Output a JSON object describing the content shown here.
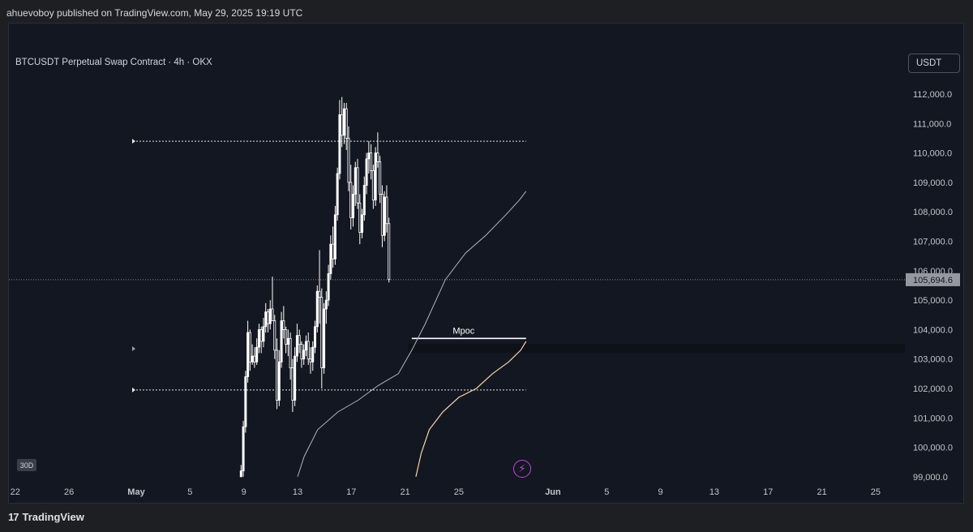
{
  "header": {
    "published_text": "ahuevoboy published on TradingView.com, May 29, 2025 19:19 UTC"
  },
  "symbol": {
    "title": "BTCUSDT Perpetual Swap Contract · 4h · OKX",
    "currency_label": "USDT"
  },
  "toolbar": {
    "period_badge": "30D",
    "bolt_icon": "lightning-icon"
  },
  "footer": {
    "brand": "TradingView",
    "logo_glyph": "17"
  },
  "colors": {
    "background": "#131722",
    "candle": "#ffffff",
    "ma_fast": "#b2b5be",
    "ma_slow": "#f7d5a8",
    "last_price_bg": "#9598a1"
  },
  "chart_data": {
    "type": "candlestick",
    "timeframe": "4h",
    "ylim": [
      99000,
      112500
    ],
    "y_ticks": [
      "112,000.0",
      "111,000.0",
      "110,000.0",
      "109,000.0",
      "108,000.0",
      "107,000.0",
      "106,000.0",
      "105,000.0",
      "104,000.0",
      "103,000.0",
      "102,000.0",
      "101,000.0",
      "100,000.0",
      "99,000.0"
    ],
    "y_tick_values": [
      112000,
      111000,
      110000,
      109000,
      108000,
      107000,
      106000,
      105000,
      104000,
      103000,
      102000,
      101000,
      100000,
      99000
    ],
    "x_tick_labels": [
      "22",
      "26",
      "May",
      "5",
      "9",
      "13",
      "17",
      "21",
      "25",
      "Jun",
      "5",
      "9",
      "13",
      "17",
      "21",
      "25"
    ],
    "x_tick_days": [
      -9,
      -5,
      0,
      4,
      8,
      12,
      16,
      20,
      24,
      31,
      35,
      39,
      43,
      47,
      51,
      55
    ],
    "last_price": 105694.6,
    "last_price_label": "105,694.6",
    "levels": [
      {
        "price": 110400,
        "style": "dotted",
        "start_day": 0,
        "end_day": 29
      },
      {
        "price": 101950,
        "style": "dotted",
        "start_day": 0,
        "end_day": 29
      },
      {
        "price": 103700,
        "style": "solid",
        "label": "Mpoc",
        "start_day": 20.5,
        "end_day": 29
      }
    ],
    "ohlc_4h_from_may8": [
      [
        99000,
        99400,
        98700,
        99200
      ],
      [
        99200,
        100900,
        99000,
        100700
      ],
      [
        100700,
        102600,
        100500,
        102400
      ],
      [
        102400,
        104300,
        102200,
        103900
      ],
      [
        103900,
        104000,
        102600,
        102900
      ],
      [
        102900,
        103500,
        102800,
        103100
      ],
      [
        103100,
        103400,
        102700,
        102900
      ],
      [
        102900,
        103700,
        102800,
        103400
      ],
      [
        103400,
        104200,
        103200,
        104000
      ],
      [
        104000,
        104100,
        103200,
        103600
      ],
      [
        103600,
        104400,
        103400,
        104100
      ],
      [
        104100,
        104900,
        103900,
        104600
      ],
      [
        104600,
        104700,
        103900,
        104200
      ],
      [
        104200,
        105000,
        104000,
        104700
      ],
      [
        104700,
        105800,
        104500,
        104300
      ],
      [
        104300,
        104500,
        103000,
        103300
      ],
      [
        103300,
        103700,
        101300,
        101600
      ],
      [
        101600,
        103300,
        101400,
        102900
      ],
      [
        102900,
        104600,
        102700,
        104300
      ],
      [
        104300,
        104800,
        103700,
        104000
      ],
      [
        104000,
        104100,
        103200,
        103500
      ],
      [
        103500,
        104000,
        103100,
        103700
      ],
      [
        103700,
        103900,
        102300,
        102700
      ],
      [
        102700,
        103000,
        101200,
        101600
      ],
      [
        101600,
        103400,
        101400,
        103100
      ],
      [
        103100,
        104200,
        102900,
        103800
      ],
      [
        103800,
        104000,
        103200,
        103500
      ],
      [
        103500,
        103600,
        102700,
        103000
      ],
      [
        103000,
        103500,
        102800,
        103300
      ],
      [
        103300,
        103800,
        103100,
        103600
      ],
      [
        103600,
        103900,
        102800,
        103000
      ],
      [
        103000,
        103400,
        102500,
        102900
      ],
      [
        102900,
        103600,
        102600,
        103400
      ],
      [
        103400,
        104300,
        103200,
        104100
      ],
      [
        104100,
        105500,
        103900,
        105300
      ],
      [
        105300,
        106700,
        104200,
        105100
      ],
      [
        105100,
        105400,
        102000,
        102700
      ],
      [
        102700,
        104900,
        102500,
        104700
      ],
      [
        104700,
        105300,
        104200,
        105000
      ],
      [
        105000,
        106200,
        104800,
        105900
      ],
      [
        105900,
        107200,
        105700,
        106900
      ],
      [
        106900,
        107500,
        106100,
        106400
      ],
      [
        106400,
        108200,
        106200,
        107900
      ],
      [
        107900,
        109500,
        107700,
        109300
      ],
      [
        109300,
        111800,
        109100,
        111300
      ],
      [
        111300,
        111900,
        110200,
        110600
      ],
      [
        110600,
        111700,
        110300,
        111500
      ],
      [
        111500,
        111700,
        110100,
        110500
      ],
      [
        110500,
        110900,
        108700,
        109000
      ],
      [
        109000,
        109600,
        107400,
        107800
      ],
      [
        107800,
        108900,
        107500,
        108600
      ],
      [
        108600,
        109700,
        108200,
        109500
      ],
      [
        109500,
        109800,
        108100,
        108300
      ],
      [
        108300,
        108600,
        106900,
        107300
      ],
      [
        107300,
        108100,
        107100,
        107900
      ],
      [
        107900,
        109200,
        107700,
        108900
      ],
      [
        108900,
        110000,
        108600,
        109800
      ],
      [
        109800,
        110400,
        109300,
        110000
      ],
      [
        110000,
        110300,
        109100,
        109400
      ],
      [
        109400,
        109600,
        108100,
        108400
      ],
      [
        108400,
        110200,
        108200,
        110000
      ],
      [
        110000,
        110700,
        109500,
        109700
      ],
      [
        109700,
        109900,
        108300,
        108600
      ],
      [
        108600,
        108900,
        106800,
        107200
      ],
      [
        107200,
        108700,
        107000,
        108500
      ],
      [
        108500,
        108900,
        107300,
        107600
      ],
      [
        107600,
        107800,
        105600,
        105700
      ]
    ],
    "ma_fast_points": [
      [
        12.0,
        99000
      ],
      [
        12.5,
        99700
      ],
      [
        13.5,
        100600
      ],
      [
        15.0,
        101200
      ],
      [
        16.5,
        101600
      ],
      [
        18.0,
        102100
      ],
      [
        19.5,
        102500
      ],
      [
        20.5,
        103300
      ],
      [
        21.5,
        104200
      ],
      [
        23.0,
        105700
      ],
      [
        24.5,
        106600
      ],
      [
        26.0,
        107200
      ],
      [
        27.5,
        107900
      ],
      [
        28.5,
        108400
      ],
      [
        29.0,
        108700
      ]
    ],
    "ma_slow_points": [
      [
        20.8,
        99000
      ],
      [
        21.2,
        99800
      ],
      [
        21.8,
        100600
      ],
      [
        22.8,
        101200
      ],
      [
        24.0,
        101700
      ],
      [
        25.3,
        102000
      ],
      [
        26.5,
        102500
      ],
      [
        27.7,
        102900
      ],
      [
        28.6,
        103300
      ],
      [
        29.0,
        103600
      ]
    ]
  }
}
